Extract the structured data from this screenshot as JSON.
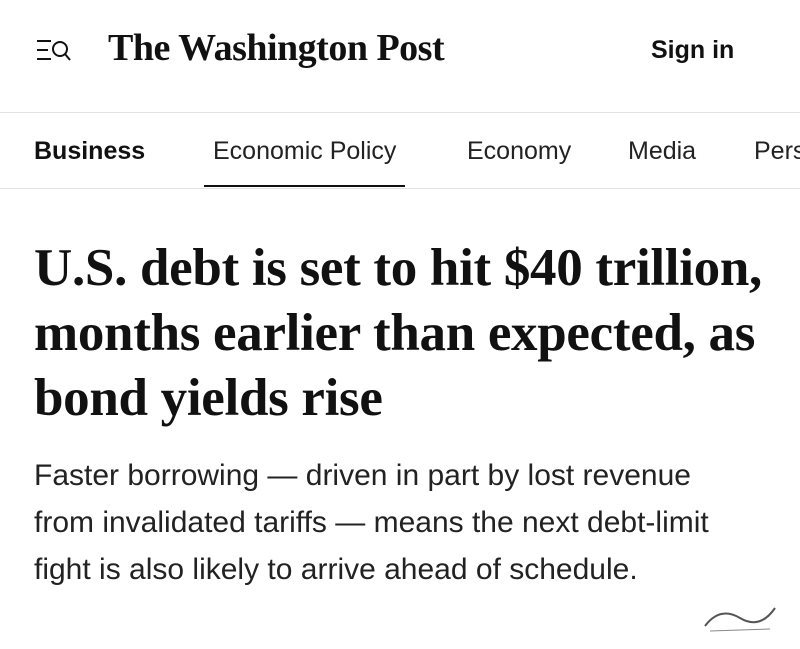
{
  "header": {
    "logo": "The Washington Post",
    "sign_in": "Sign in"
  },
  "nav": {
    "items": [
      "Business",
      "Economic Policy",
      "Economy",
      "Media",
      "Pers"
    ],
    "active": 1
  },
  "article": {
    "headline": "U.S. debt is set to hit $40 trillion, months earlier than expected, as bond yields rise",
    "subheadline": "Faster borrowing — driven in part by lost revenue from invalidated tariffs — means the next debt-limit fight is also likely to arrive ahead of schedule."
  }
}
